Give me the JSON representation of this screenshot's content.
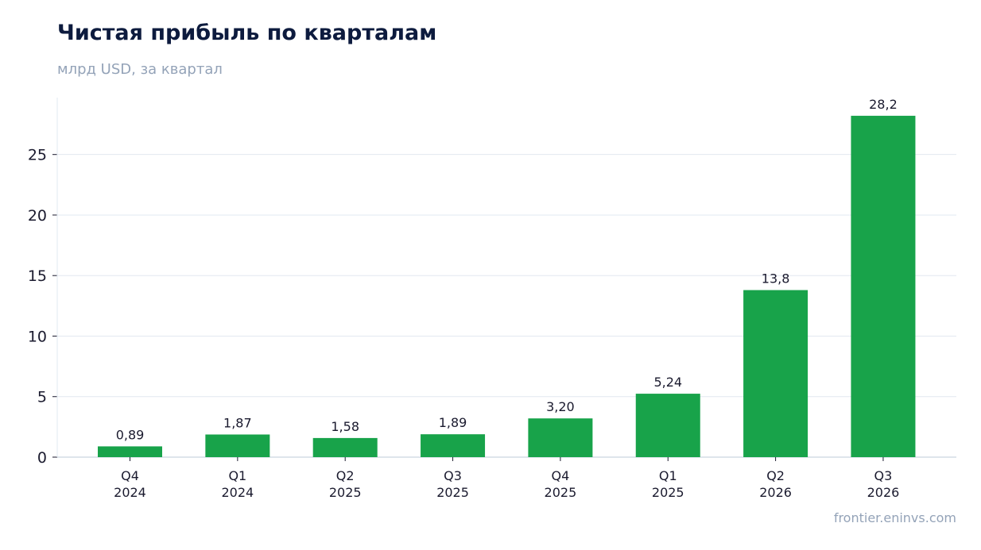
{
  "header": {
    "title": "Чистая прибыль по кварталам",
    "subtitle": "млрд USD, за квартал"
  },
  "footer": {
    "source": "frontier.eninvs.com"
  },
  "colors": {
    "bar": "#18a34a",
    "grid": "#e2e8f0",
    "axis": "#cbd5e1",
    "title": "#0d1b3e",
    "muted": "#94a3b8"
  },
  "chart_data": {
    "type": "bar",
    "title": "Чистая прибыль по кварталам",
    "subtitle": "млрд USD, за квартал",
    "xlabel": "",
    "ylabel": "",
    "categories": [
      [
        "Q4",
        "2024"
      ],
      [
        "Q1",
        "2024"
      ],
      [
        "Q2",
        "2025"
      ],
      [
        "Q3",
        "2025"
      ],
      [
        "Q4",
        "2025"
      ],
      [
        "Q1",
        "2025"
      ],
      [
        "Q2",
        "2026"
      ],
      [
        "Q3",
        "2026"
      ]
    ],
    "values": [
      0.89,
      1.87,
      1.58,
      1.89,
      3.2,
      5.24,
      13.8,
      28.2
    ],
    "data_labels": [
      "0,89",
      "1,87",
      "1,58",
      "1,89",
      "3,20",
      "5,24",
      "13,8",
      "28,2"
    ],
    "yticks": [
      0,
      5,
      10,
      15,
      20,
      25
    ],
    "ylim": [
      0,
      29.7
    ],
    "grid": true,
    "legend": "none"
  }
}
